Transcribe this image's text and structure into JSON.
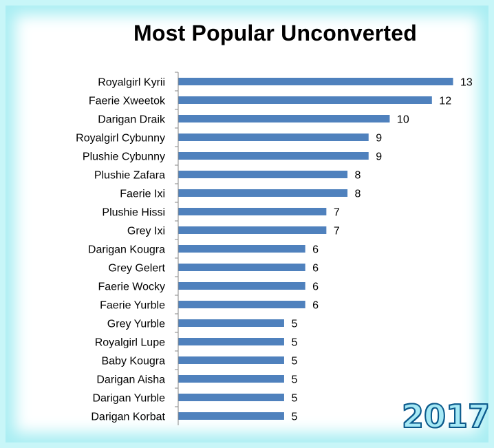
{
  "chart_data": {
    "type": "bar",
    "orientation": "horizontal",
    "title": "Most Popular Unconverted",
    "categories": [
      "Royalgirl Kyrii",
      "Faerie Xweetok",
      "Darigan Draik",
      "Royalgirl Cybunny",
      "Plushie Cybunny",
      "Plushie Zafara",
      "Faerie Ixi",
      "Plushie Hissi",
      "Grey Ixi",
      "Darigan Kougra",
      "Grey Gelert",
      "Faerie Wocky",
      "Faerie Yurble",
      "Grey Yurble",
      "Royalgirl Lupe",
      "Baby Kougra",
      "Darigan Aisha",
      "Darigan Yurble",
      "Darigan Korbat"
    ],
    "values": [
      13,
      12,
      10,
      9,
      9,
      8,
      8,
      7,
      7,
      6,
      6,
      6,
      6,
      5,
      5,
      5,
      5,
      5,
      5
    ],
    "xlabel": "",
    "ylabel": "",
    "xlim": [
      0,
      13
    ],
    "grid": false,
    "legend": "none",
    "data_labels": true,
    "bar_color": "#4f81bd"
  },
  "badge": {
    "year": "2017"
  }
}
